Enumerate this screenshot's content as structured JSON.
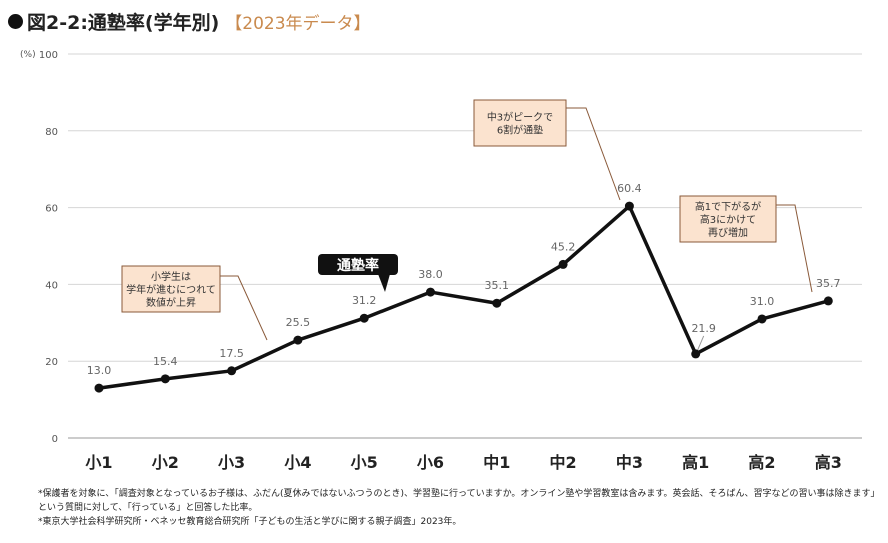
{
  "title": "図2-2:通塾率(学年別)",
  "subtitle": "【2023年データ】",
  "chart_data": {
    "type": "line",
    "categories": [
      "小1",
      "小2",
      "小3",
      "小4",
      "小5",
      "小6",
      "中1",
      "中2",
      "中3",
      "高1",
      "高2",
      "高3"
    ],
    "series": [
      {
        "name": "通塾率",
        "values": [
          13.0,
          15.4,
          17.5,
          25.5,
          31.2,
          38.0,
          35.1,
          45.2,
          60.4,
          21.9,
          31.0,
          35.7
        ]
      }
    ],
    "data_labels": [
      "13.0",
      "15.4",
      "17.5",
      "25.5",
      "31.2",
      "38.0",
      "35.1",
      "45.2",
      "60.4",
      "21.9",
      "31.0",
      "35.7"
    ],
    "ylabel": "(%)",
    "ylim": [
      0,
      100
    ],
    "yticks": [
      0,
      20,
      40,
      60,
      80,
      100
    ],
    "grid": true,
    "line_color": "#111111",
    "annotations": [
      {
        "lines": [
          "小学生は",
          "学年が進むにつれて",
          "数値が上昇"
        ]
      },
      {
        "lines": [
          "中3がピークで",
          "6割が通塾"
        ]
      },
      {
        "lines": [
          "高1で下がるが",
          "高3にかけて",
          "再び増加"
        ]
      }
    ],
    "annotation_style": {
      "fill": "#fbe3cf",
      "stroke": "#8a5a3a"
    }
  },
  "notes": [
    "*保護者を対象に、「調査対象となっているお子様は、ふだん(夏休みではないふつうのとき)、学習塾に行っていますか。オンライン塾や学習教室は含みます。英会話、そろばん、習字などの習い事は除きます」という質問に対して、「行っている」と回答した比率。",
    "*東京大学社会科学研究所・ベネッセ教育総合研究所「子どもの生活と学びに関する親子調査」2023年。"
  ]
}
